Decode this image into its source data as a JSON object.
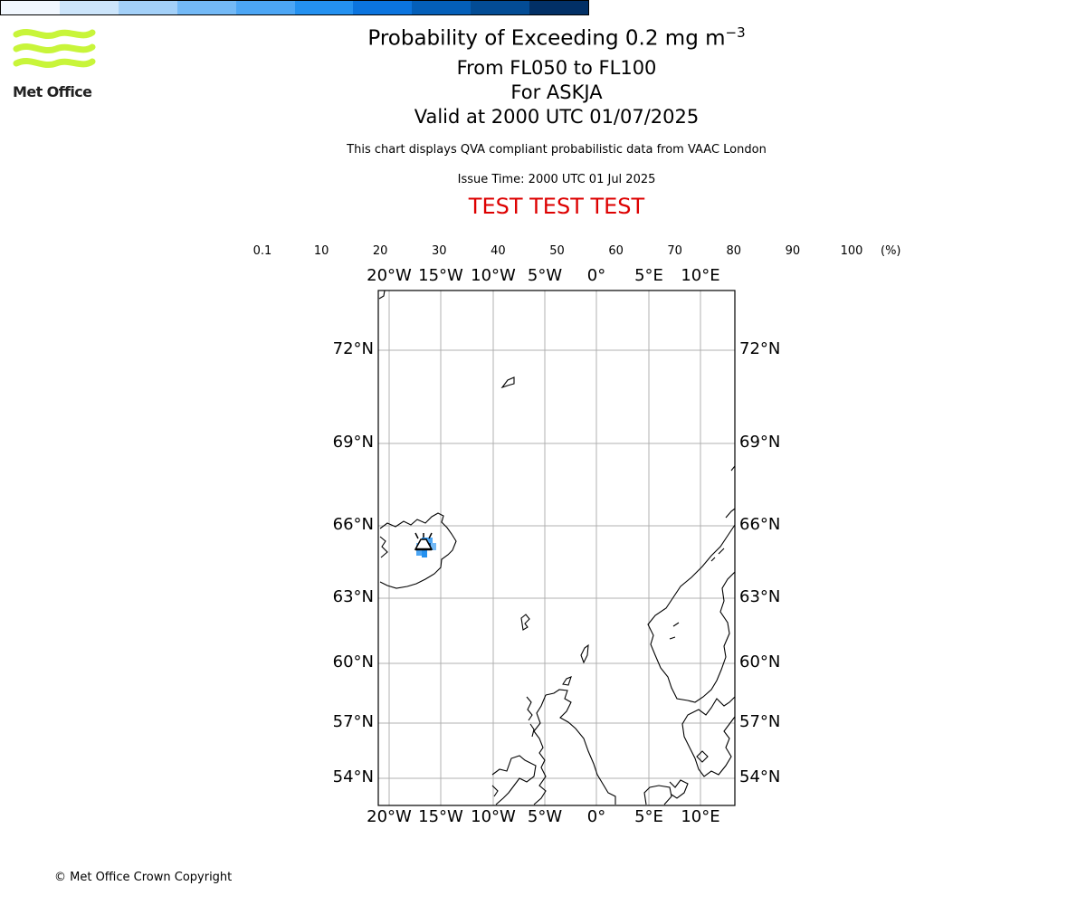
{
  "header": {
    "title_prefix": "Probability of Exceeding 0.2 mg m",
    "title_exponent": "−3",
    "level_range": "From FL050 to FL100",
    "volcano": "For ASKJA",
    "valid_time": "Valid at 2000 UTC 01/07/2025",
    "description": "This chart displays QVA compliant probabilistic data from VAAC London",
    "issue_time": "Issue Time: 2000 UTC 01 Jul 2025",
    "banner": "TEST TEST TEST"
  },
  "logo": {
    "text": "Met Office",
    "color": "#c8f53a"
  },
  "footer": {
    "copyright": "© Met Office Crown Copyright"
  },
  "colorbar": {
    "unit": "(%)",
    "ticks": [
      "0.1",
      "10",
      "20",
      "30",
      "40",
      "50",
      "60",
      "70",
      "80",
      "90",
      "100"
    ],
    "colors": [
      "#f1f7fe",
      "#cce5fb",
      "#a3d0f8",
      "#73b9f6",
      "#4ca6f5",
      "#2491f0",
      "#0b74de",
      "#045fb9",
      "#034c95",
      "#023066"
    ]
  },
  "map": {
    "longitude_labels": [
      "20°W",
      "15°W",
      "10°W",
      "5°W",
      "0°",
      "5°E",
      "10°E"
    ],
    "latitude_labels": [
      "72°N",
      "69°N",
      "66°N",
      "63°N",
      "60°N",
      "57°N",
      "54°N"
    ],
    "volcano_icon": "volcano-icon",
    "ash_cell_colors": [
      "#73b9f6",
      "#4ca6f5",
      "#2491f0",
      "#034c95"
    ]
  }
}
